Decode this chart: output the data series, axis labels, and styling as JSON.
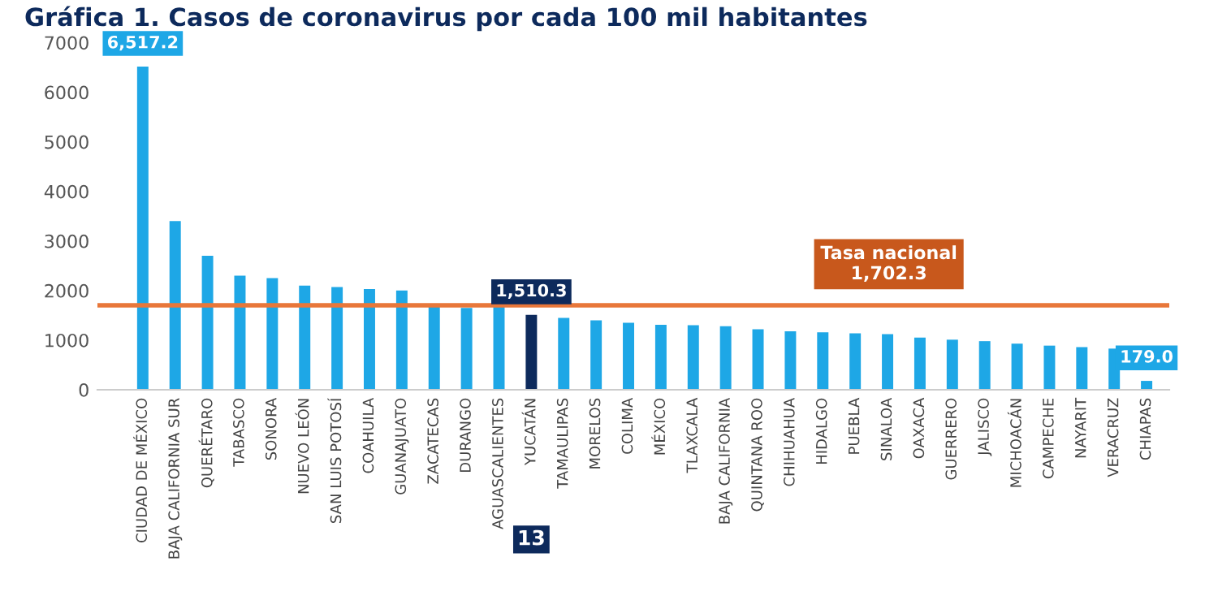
{
  "chart_data": {
    "type": "bar",
    "title": "Gráfica 1. Casos de coronavirus por cada 100 mil habitantes",
    "categories": [
      "CIUDAD DE MÉXICO",
      "BAJA CALIFORNIA SUR",
      "QUERÉTARO",
      "TABASCO",
      "SONORA",
      "NUEVO LEÓN",
      "SAN LUIS POTOSÍ",
      "COAHUILA",
      "GUANAJUATO",
      "ZACATECAS",
      "DURANGO",
      "AGUASCALIENTES",
      "YUCATÁN",
      "TAMAULIPAS",
      "MORELOS",
      "COLIMA",
      "MÉXICO",
      "TLAXCALA",
      "BAJA CALIFORNIA",
      "QUINTANA ROO",
      "CHIHUAHUA",
      "HIDALGO",
      "PUEBLA",
      "SINALOA",
      "OAXACA",
      "GUERRERO",
      "JALISCO",
      "MICHOACÁN",
      "CAMPECHE",
      "NAYARIT",
      "VERACRUZ",
      "CHIAPAS"
    ],
    "values": [
      6517.2,
      3400,
      2700,
      2300,
      2250,
      2100,
      2070,
      2030,
      2000,
      1680,
      1650,
      1700,
      1510.3,
      1450,
      1400,
      1350,
      1310,
      1300,
      1280,
      1220,
      1180,
      1160,
      1140,
      1120,
      1050,
      1010,
      980,
      930,
      890,
      860,
      830,
      179.0
    ],
    "colors": [
      "#1ea7e6",
      "#1ea7e6",
      "#1ea7e6",
      "#1ea7e6",
      "#1ea7e6",
      "#1ea7e6",
      "#1ea7e6",
      "#1ea7e6",
      "#1ea7e6",
      "#1ea7e6",
      "#1ea7e6",
      "#1ea7e6",
      "#0d2a5c",
      "#1ea7e6",
      "#1ea7e6",
      "#1ea7e6",
      "#1ea7e6",
      "#1ea7e6",
      "#1ea7e6",
      "#1ea7e6",
      "#1ea7e6",
      "#1ea7e6",
      "#1ea7e6",
      "#1ea7e6",
      "#1ea7e6",
      "#1ea7e6",
      "#1ea7e6",
      "#1ea7e6",
      "#1ea7e6",
      "#1ea7e6",
      "#1ea7e6",
      "#1ea7e6"
    ],
    "value_labels": [
      "6,517.2",
      null,
      null,
      null,
      null,
      null,
      null,
      null,
      null,
      null,
      null,
      null,
      "1,510.3",
      null,
      null,
      null,
      null,
      null,
      null,
      null,
      null,
      null,
      null,
      null,
      null,
      null,
      null,
      null,
      null,
      null,
      null,
      "179.0"
    ],
    "ref_lines": [
      {
        "axis": "y",
        "value": 1702.3,
        "label": "Tasa nacional\n1,702.3",
        "color": "#e8773a"
      }
    ],
    "annotations": [
      "13"
    ],
    "ylim": [
      0,
      7000
    ],
    "yticks": [
      0,
      1000,
      2000,
      3000,
      4000,
      5000,
      6000,
      7000
    ],
    "grid": false
  }
}
